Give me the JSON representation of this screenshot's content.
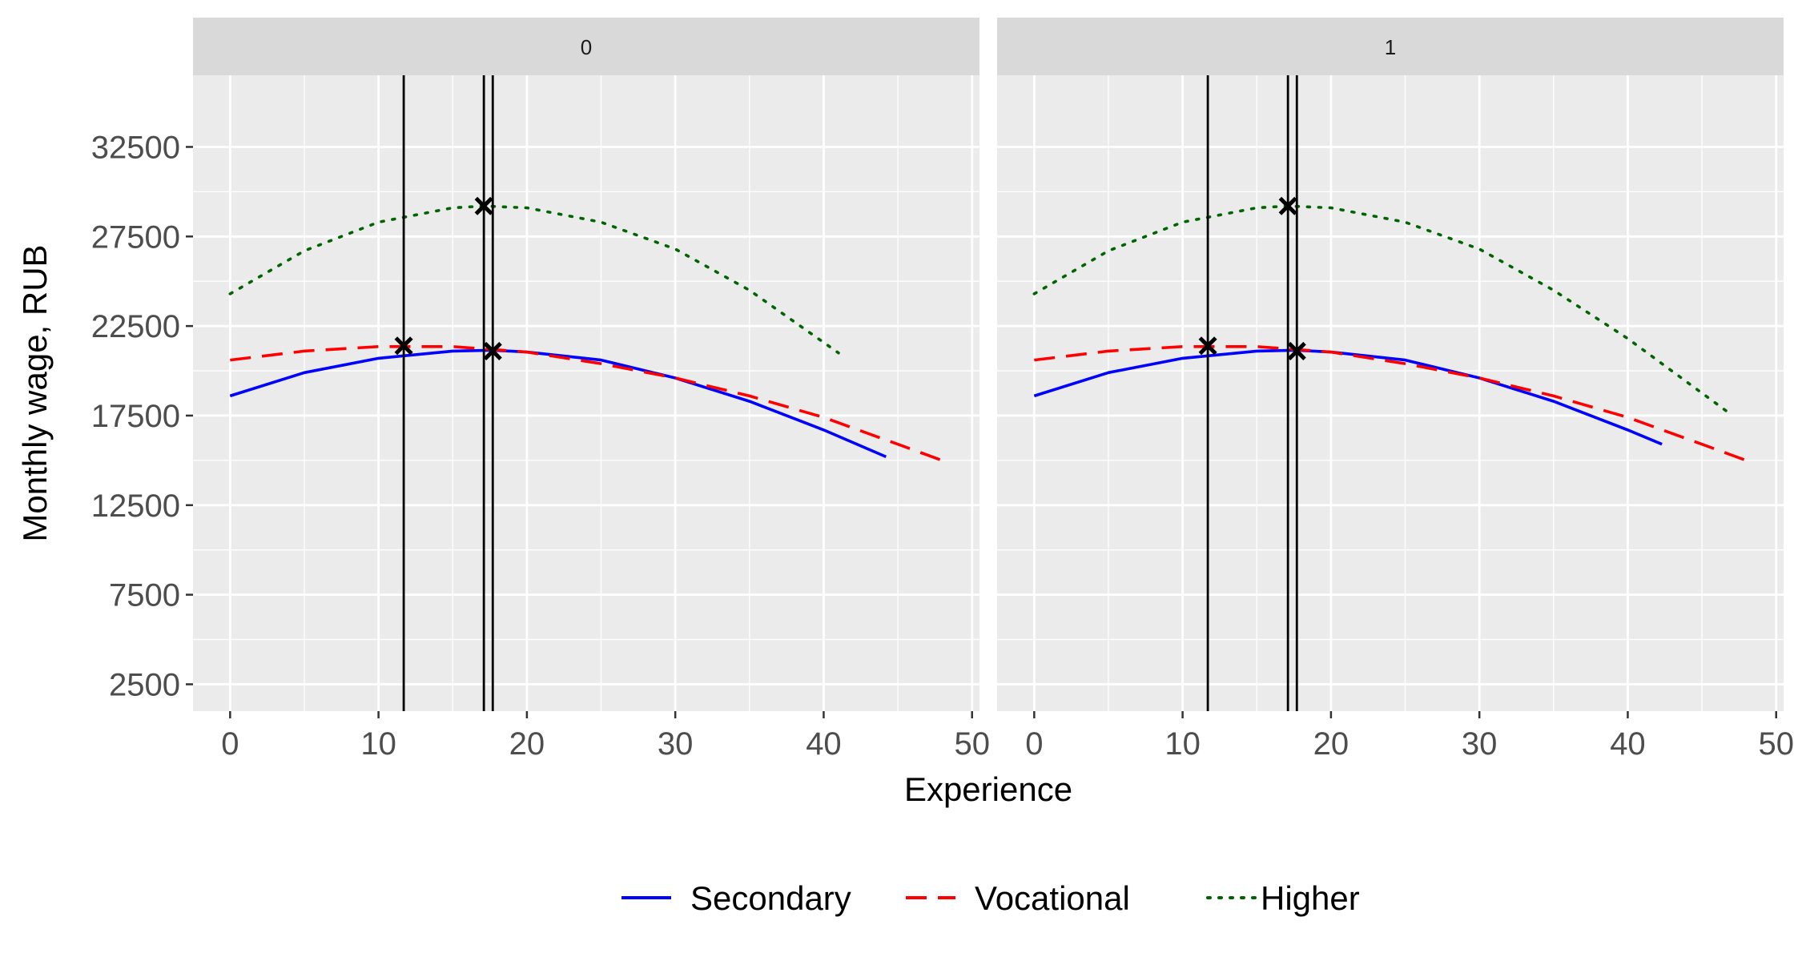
{
  "chart_data": {
    "type": "line",
    "xlabel": "Experience",
    "ylabel": "Monthly wage, RUB",
    "xlim": [
      -2.5,
      50.5
    ],
    "ylim": [
      1000,
      36500
    ],
    "x_ticks": [
      0,
      10,
      20,
      30,
      40,
      50
    ],
    "y_ticks": [
      2500,
      7500,
      12500,
      17500,
      22500,
      27500,
      32500
    ],
    "grid": true,
    "legend_position": "bottom",
    "colors": {
      "Secondary": "#0000ff",
      "Vocational": "#ff0000",
      "Higher": "#006400"
    },
    "facets": [
      {
        "label": "0",
        "vlines": [
          11.7,
          17.1,
          17.7
        ],
        "markers": [
          {
            "x": 11.7,
            "y": 21400
          },
          {
            "x": 17.1,
            "y": 29200
          },
          {
            "x": 17.7,
            "y": 21100
          }
        ],
        "series": [
          {
            "name": "Secondary",
            "x": [
              0,
              5,
              10,
              15,
              17.7,
              20,
              25,
              30,
              35,
              40,
              44.2
            ],
            "y": [
              18600,
              19900,
              20700,
              21100,
              21150,
              21050,
              20600,
              19600,
              18300,
              16700,
              15200
            ]
          },
          {
            "name": "Vocational",
            "x": [
              0,
              5,
              10,
              15,
              20,
              25,
              30,
              35,
              40,
              45,
              48.3
            ],
            "y": [
              20600,
              21100,
              21350,
              21350,
              21050,
              20400,
              19600,
              18600,
              17400,
              15900,
              14900
            ]
          },
          {
            "name": "Higher",
            "x": [
              0,
              5,
              10,
              15,
              17.1,
              20,
              25,
              30,
              35,
              41
            ],
            "y": [
              24300,
              26700,
              28300,
              29100,
              29200,
              29100,
              28300,
              26800,
              24500,
              21000
            ]
          }
        ]
      },
      {
        "label": "1",
        "vlines": [
          11.7,
          17.1,
          17.7
        ],
        "markers": [
          {
            "x": 11.7,
            "y": 21400
          },
          {
            "x": 17.1,
            "y": 29200
          },
          {
            "x": 17.7,
            "y": 21100
          }
        ],
        "series": [
          {
            "name": "Secondary",
            "x": [
              0,
              5,
              10,
              15,
              17.7,
              20,
              25,
              30,
              35,
              40,
              42.3
            ],
            "y": [
              18600,
              19900,
              20700,
              21100,
              21150,
              21050,
              20600,
              19600,
              18300,
              16700,
              15900
            ]
          },
          {
            "name": "Vocational",
            "x": [
              0,
              5,
              10,
              15,
              20,
              25,
              30,
              35,
              40,
              45,
              48.3
            ],
            "y": [
              20600,
              21100,
              21350,
              21350,
              21050,
              20400,
              19600,
              18600,
              17400,
              15900,
              14900
            ]
          },
          {
            "name": "Higher",
            "x": [
              0,
              5,
              10,
              15,
              17.1,
              20,
              25,
              30,
              35,
              40,
              46.9
            ],
            "y": [
              24300,
              26700,
              28300,
              29100,
              29200,
              29100,
              28300,
              26800,
              24500,
              21800,
              17600
            ]
          }
        ]
      }
    ]
  }
}
